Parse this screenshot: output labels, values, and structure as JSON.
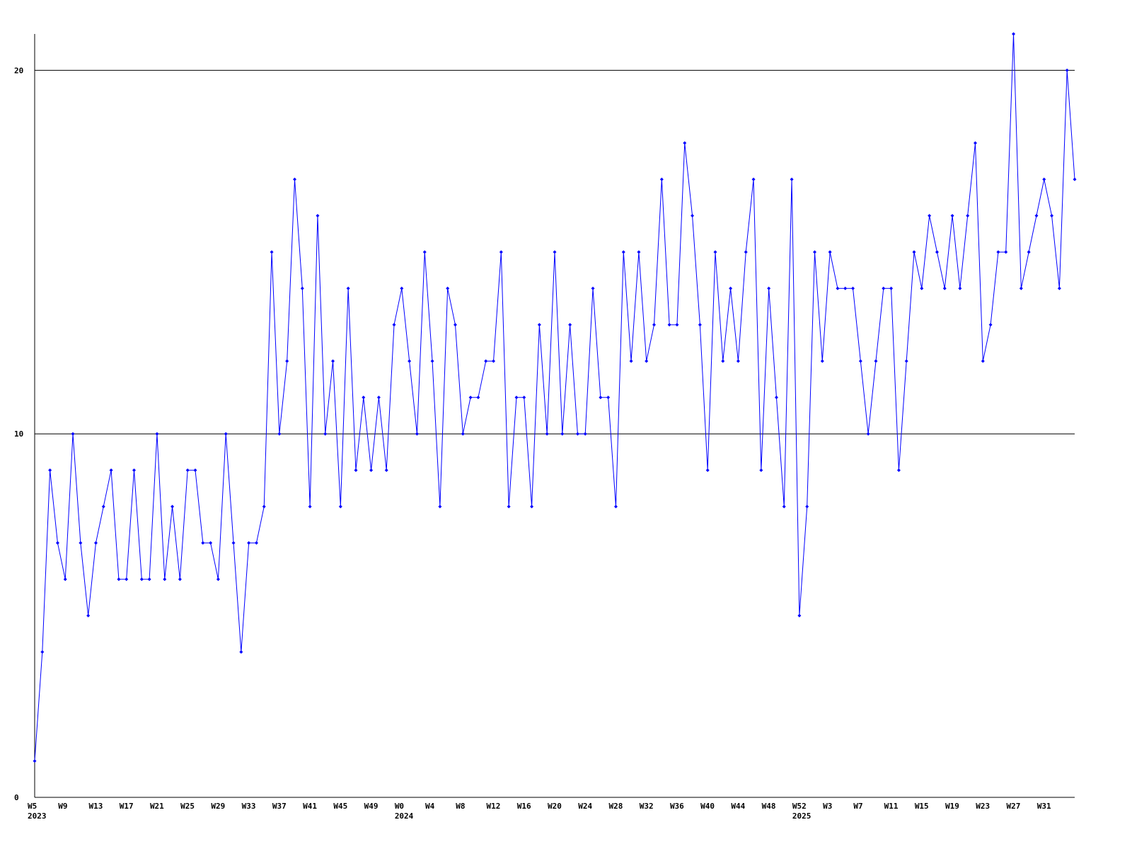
{
  "chart_data": {
    "type": "line",
    "categories": [
      "W5",
      null,
      null,
      null,
      "W9",
      null,
      null,
      null,
      "W13",
      null,
      null,
      null,
      "W17",
      null,
      null,
      null,
      "W21",
      null,
      null,
      null,
      "W25",
      null,
      null,
      null,
      "W29",
      null,
      null,
      null,
      "W33",
      null,
      null,
      null,
      "W37",
      null,
      null,
      null,
      "W41",
      null,
      null,
      null,
      "W45",
      null,
      null,
      null,
      "W49",
      null,
      null,
      null,
      "W0",
      null,
      null,
      null,
      "W4",
      null,
      null,
      null,
      "W8",
      null,
      null,
      null,
      "W12",
      null,
      null,
      null,
      "W16",
      null,
      null,
      null,
      "W20",
      null,
      null,
      null,
      "W24",
      null,
      null,
      null,
      "W28",
      null,
      null,
      null,
      "W32",
      null,
      null,
      null,
      "W36",
      null,
      null,
      null,
      "W40",
      null,
      null,
      null,
      "W44",
      null,
      null,
      null,
      "W48",
      null,
      null,
      null,
      "W52",
      null,
      null,
      null,
      "W3",
      null,
      null,
      null,
      "W7",
      null,
      null,
      null,
      "W11",
      null,
      null,
      null,
      "W15",
      null,
      null,
      null,
      "W19",
      null,
      null,
      null,
      "W23",
      null,
      null,
      null,
      "W27",
      null,
      null,
      null,
      "W31",
      null,
      null,
      null,
      null
    ],
    "category_years": [
      "2023",
      null,
      null,
      null,
      null,
      null,
      null,
      null,
      null,
      null,
      null,
      null,
      null,
      null,
      null,
      null,
      null,
      null,
      null,
      null,
      null,
      null,
      null,
      null,
      null,
      null,
      null,
      null,
      null,
      null,
      null,
      null,
      null,
      null,
      null,
      null,
      null,
      null,
      null,
      null,
      null,
      null,
      null,
      null,
      null,
      null,
      null,
      null,
      "2024",
      null,
      null,
      null,
      null,
      null,
      null,
      null,
      null,
      null,
      null,
      null,
      null,
      null,
      null,
      null,
      null,
      null,
      null,
      null,
      null,
      null,
      null,
      null,
      null,
      null,
      null,
      null,
      null,
      null,
      null,
      null,
      null,
      null,
      null,
      null,
      null,
      null,
      null,
      null,
      null,
      null,
      null,
      null,
      null,
      null,
      null,
      null,
      null,
      null,
      null,
      null,
      "2025",
      null,
      null,
      null,
      null,
      null,
      null,
      null,
      null,
      null,
      null,
      null,
      null,
      null,
      null,
      null,
      null,
      null,
      null,
      null,
      null,
      null,
      null,
      null,
      null,
      null,
      null,
      null,
      null,
      null,
      null,
      null,
      null,
      null,
      null,
      null,
      null
    ],
    "series": [
      {
        "color": "#0000ff",
        "values": [
          1,
          4,
          9,
          7,
          6,
          10,
          7,
          5,
          7,
          8,
          9,
          6,
          6,
          9,
          6,
          6,
          10,
          6,
          8,
          6,
          9,
          9,
          7,
          7,
          6,
          10,
          7,
          4,
          7,
          7,
          8,
          15,
          10,
          12,
          17,
          14,
          8,
          16,
          10,
          12,
          8,
          14,
          9,
          11,
          9,
          11,
          9,
          13,
          14,
          12,
          10,
          15,
          12,
          8,
          14,
          13,
          10,
          11,
          11,
          12,
          12,
          15,
          8,
          11,
          11,
          8,
          13,
          10,
          15,
          10,
          13,
          10,
          10,
          14,
          11,
          11,
          8,
          15,
          12,
          15,
          12,
          13,
          17,
          13,
          13,
          18,
          16,
          13,
          9,
          15,
          12,
          14,
          12,
          15,
          17,
          9,
          14,
          11,
          8,
          17,
          5,
          8,
          15,
          12,
          15,
          14,
          14,
          14,
          12,
          10,
          12,
          14,
          14,
          9,
          12,
          15,
          14,
          16,
          15,
          14,
          16,
          14,
          16,
          18,
          12,
          13,
          15,
          15,
          21,
          14,
          15,
          16,
          17,
          16,
          14,
          20,
          17
        ]
      }
    ],
    "ylim": [
      0,
      21
    ],
    "yticks": [
      0,
      10,
      20
    ],
    "grid": true
  }
}
